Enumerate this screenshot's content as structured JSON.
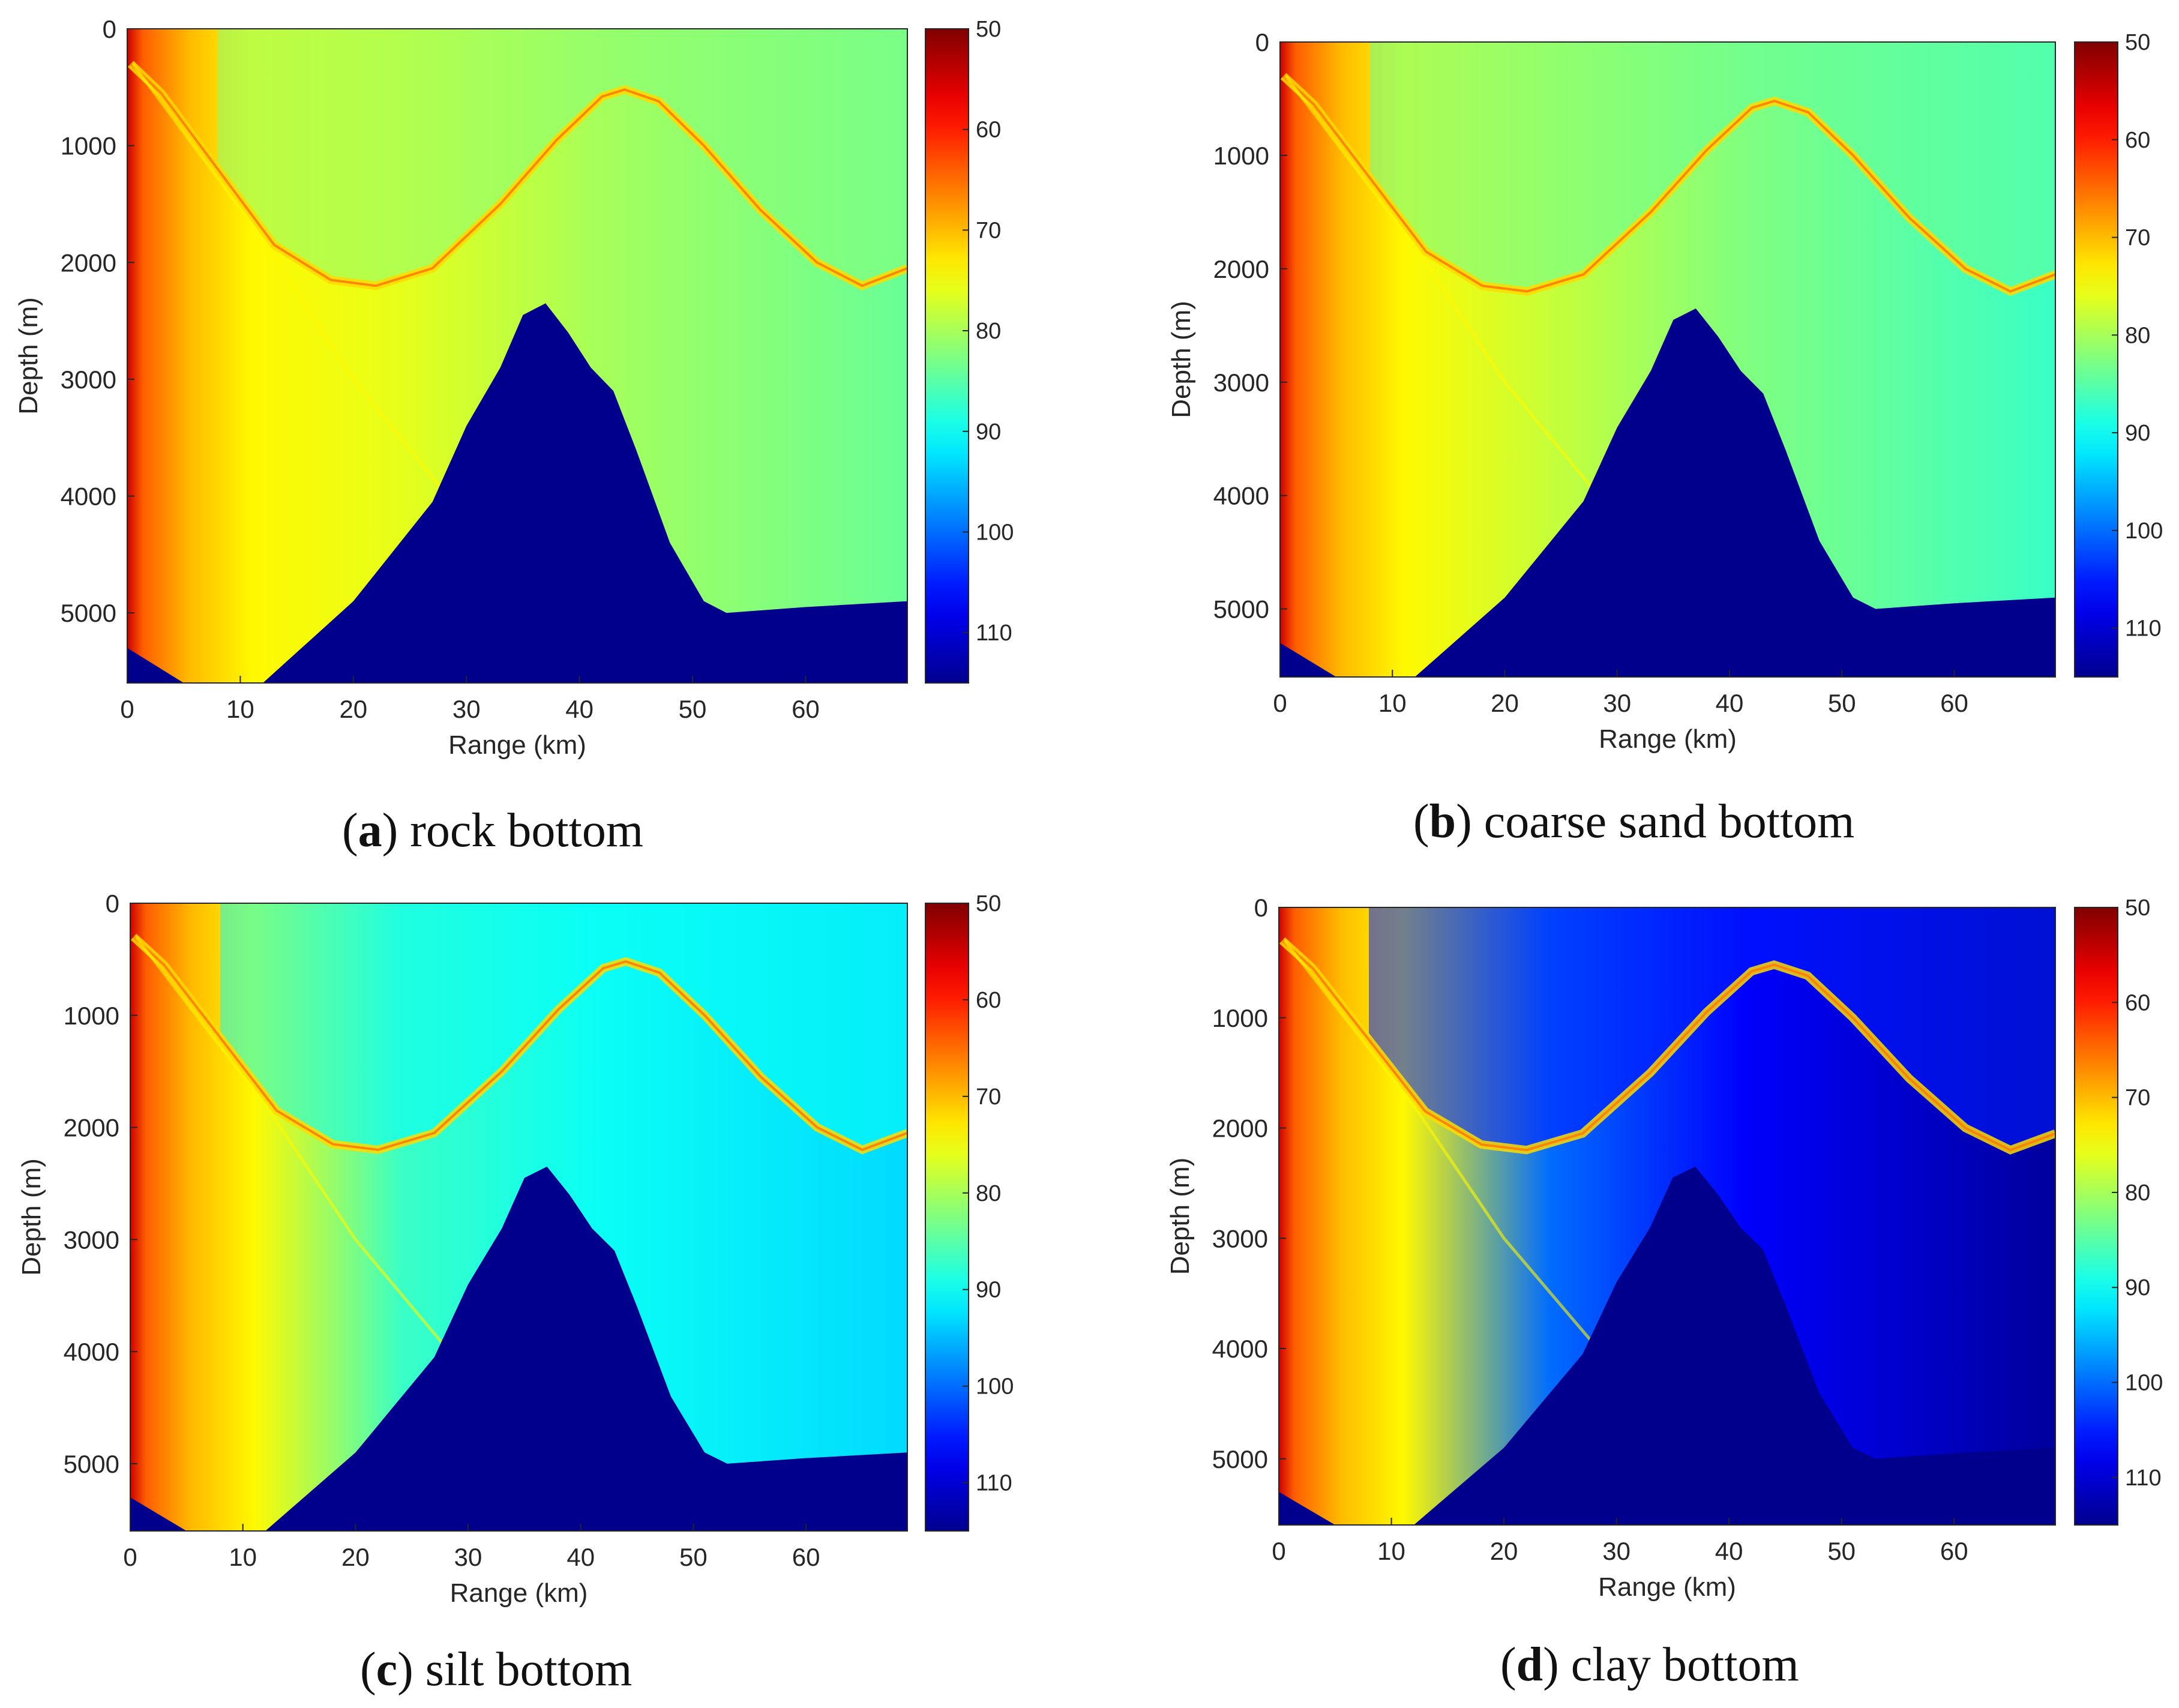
{
  "colors": {
    "colormap": [
      "#00008f",
      "#0000ff",
      "#0080ff",
      "#00ffff",
      "#80ff80",
      "#ffff00",
      "#ff8000",
      "#ff0000",
      "#800000"
    ],
    "deep_blue": "#00008c",
    "axis": "#262626"
  },
  "chart_data": [
    {
      "type": "heatmap",
      "caption": {
        "letter": "a",
        "text": " rock bottom"
      },
      "xlabel": "Range (km)",
      "ylabel": "Depth (m)",
      "xlim": [
        0,
        69
      ],
      "ylim": [
        0,
        5600
      ],
      "y_inverted": true,
      "xticks": [
        0,
        10,
        20,
        30,
        40,
        50,
        60
      ],
      "yticks": [
        0,
        1000,
        2000,
        3000,
        4000,
        5000
      ],
      "colorbar": {
        "ticks": [
          50,
          60,
          70,
          80,
          90,
          100,
          110
        ],
        "range": [
          50,
          115
        ],
        "reversed": true
      },
      "water_level": 76,
      "far_level": 84,
      "shadow_level": 82,
      "bathymetry": [
        [
          0,
          5300
        ],
        [
          5,
          5600
        ],
        [
          12,
          5600
        ],
        [
          20,
          4900
        ],
        [
          27,
          4050
        ],
        [
          30,
          3400
        ],
        [
          33,
          2900
        ],
        [
          35,
          2450
        ],
        [
          37,
          2350
        ],
        [
          39,
          2600
        ],
        [
          41,
          2900
        ],
        [
          43,
          3100
        ],
        [
          45,
          3600
        ],
        [
          48,
          4400
        ],
        [
          51,
          4900
        ],
        [
          53,
          5000
        ],
        [
          60,
          4950
        ],
        [
          69,
          4900
        ]
      ]
    },
    {
      "type": "heatmap",
      "caption": {
        "letter": "b",
        "text": " coarse sand bottom"
      },
      "xlabel": "Range (km)",
      "ylabel": "Depth (m)",
      "xlim": [
        0,
        69
      ],
      "ylim": [
        0,
        5600
      ],
      "y_inverted": true,
      "xticks": [
        0,
        10,
        20,
        30,
        40,
        50,
        60
      ],
      "yticks": [
        0,
        1000,
        2000,
        3000,
        4000,
        5000
      ],
      "colorbar": {
        "ticks": [
          50,
          60,
          70,
          80,
          90,
          100,
          110
        ],
        "range": [
          50,
          115
        ],
        "reversed": true
      },
      "water_level": 78,
      "far_level": 87,
      "shadow_level": 84,
      "bathymetry": [
        [
          0,
          5300
        ],
        [
          5,
          5600
        ],
        [
          12,
          5600
        ],
        [
          20,
          4900
        ],
        [
          27,
          4050
        ],
        [
          30,
          3400
        ],
        [
          33,
          2900
        ],
        [
          35,
          2450
        ],
        [
          37,
          2350
        ],
        [
          39,
          2600
        ],
        [
          41,
          2900
        ],
        [
          43,
          3100
        ],
        [
          45,
          3600
        ],
        [
          48,
          4400
        ],
        [
          51,
          4900
        ],
        [
          53,
          5000
        ],
        [
          60,
          4950
        ],
        [
          69,
          4900
        ]
      ]
    },
    {
      "type": "heatmap",
      "caption": {
        "letter": "c",
        "text": " silt bottom"
      },
      "xlabel": "Range (km)",
      "ylabel": "Depth (m)",
      "xlim": [
        0,
        69
      ],
      "ylim": [
        0,
        5600
      ],
      "y_inverted": true,
      "xticks": [
        0,
        10,
        20,
        30,
        40,
        50,
        60
      ],
      "yticks": [
        0,
        1000,
        2000,
        3000,
        4000,
        5000
      ],
      "colorbar": {
        "ticks": [
          50,
          60,
          70,
          80,
          90,
          100,
          110
        ],
        "range": [
          50,
          115
        ],
        "reversed": true
      },
      "water_level": 87,
      "far_level": 93,
      "shadow_level": 90,
      "bathymetry": [
        [
          0,
          5300
        ],
        [
          5,
          5600
        ],
        [
          12,
          5600
        ],
        [
          20,
          4900
        ],
        [
          27,
          4050
        ],
        [
          30,
          3400
        ],
        [
          33,
          2900
        ],
        [
          35,
          2450
        ],
        [
          37,
          2350
        ],
        [
          39,
          2600
        ],
        [
          41,
          2900
        ],
        [
          43,
          3100
        ],
        [
          45,
          3600
        ],
        [
          48,
          4400
        ],
        [
          51,
          4900
        ],
        [
          53,
          5000
        ],
        [
          60,
          4950
        ],
        [
          69,
          4900
        ]
      ]
    },
    {
      "type": "heatmap",
      "caption": {
        "letter": "d",
        "text": " clay bottom"
      },
      "xlabel": "Range (km)",
      "ylabel": "Depth (m)",
      "xlim": [
        0,
        69
      ],
      "ylim": [
        0,
        5600
      ],
      "y_inverted": true,
      "xticks": [
        0,
        10,
        20,
        30,
        40,
        50,
        60
      ],
      "yticks": [
        0,
        1000,
        2000,
        3000,
        4000,
        5000
      ],
      "colorbar": {
        "ticks": [
          50,
          60,
          70,
          80,
          90,
          100,
          110
        ],
        "range": [
          50,
          115
        ],
        "reversed": true
      },
      "water_level": 100,
      "far_level": 114,
      "shadow_level": 105,
      "bathymetry": [
        [
          0,
          5300
        ],
        [
          5,
          5600
        ],
        [
          12,
          5600
        ],
        [
          20,
          4900
        ],
        [
          27,
          4050
        ],
        [
          30,
          3400
        ],
        [
          33,
          2900
        ],
        [
          35,
          2450
        ],
        [
          37,
          2350
        ],
        [
          39,
          2600
        ],
        [
          41,
          2900
        ],
        [
          43,
          3100
        ],
        [
          45,
          3600
        ],
        [
          48,
          4400
        ],
        [
          51,
          4900
        ],
        [
          53,
          5000
        ],
        [
          60,
          4950
        ],
        [
          69,
          4900
        ]
      ]
    }
  ]
}
